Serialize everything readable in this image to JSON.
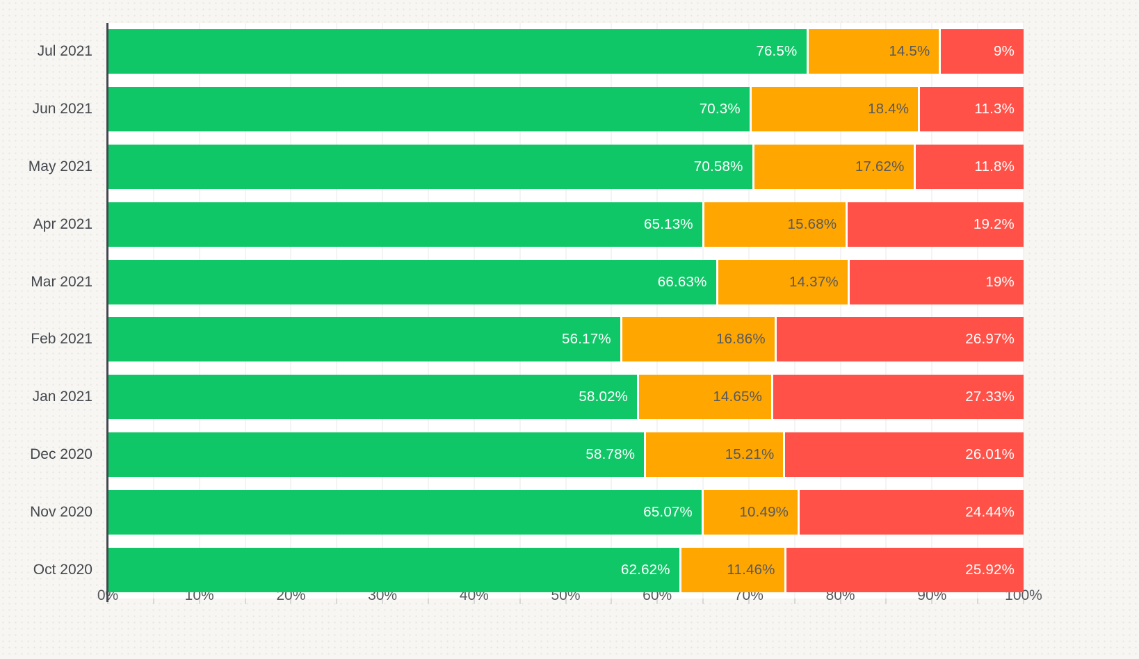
{
  "page": {
    "background": "#f7f6f3",
    "plot_background": "#ffffff",
    "gridline_color": "#e9e9e9",
    "axis_line_color": "#43474d",
    "tick_color": "#d8d8d6"
  },
  "chart_data": {
    "type": "bar",
    "stacked": true,
    "orientation": "horizontal",
    "title": "",
    "xlabel": "",
    "ylabel": "",
    "grid": true,
    "legend": "none",
    "categories": [
      "Jul 2021",
      "Jun 2021",
      "May 2021",
      "Apr 2021",
      "Mar 2021",
      "Feb 2021",
      "Jan 2021",
      "Dec 2020",
      "Nov 2020",
      "Oct 2020"
    ],
    "series": [
      {
        "name": "green",
        "color": "#10c767",
        "label_color": "#ffffff",
        "values": [
          76.5,
          70.3,
          70.58,
          65.13,
          66.63,
          56.17,
          58.02,
          58.78,
          65.07,
          62.62
        ],
        "labels": [
          "76.5%",
          "70.3%",
          "70.58%",
          "65.13%",
          "66.63%",
          "56.17%",
          "58.02%",
          "58.78%",
          "65.07%",
          "62.62%"
        ]
      },
      {
        "name": "orange",
        "color": "#ffa601",
        "label_color": "#55595e",
        "values": [
          14.5,
          18.4,
          17.62,
          15.68,
          14.37,
          16.86,
          14.65,
          15.21,
          10.49,
          11.46
        ],
        "labels": [
          "14.5%",
          "18.4%",
          "17.62%",
          "15.68%",
          "14.37%",
          "16.86%",
          "14.65%",
          "15.21%",
          "10.49%",
          "11.46%"
        ]
      },
      {
        "name": "red",
        "color": "#ff5147",
        "label_color": "#ffffff",
        "values": [
          9,
          11.3,
          11.8,
          19.2,
          19,
          26.97,
          27.33,
          26.01,
          24.44,
          25.92
        ],
        "labels": [
          "9%",
          "11.3%",
          "11.8%",
          "19.2%",
          "19%",
          "26.97%",
          "27.33%",
          "26.01%",
          "24.44%",
          "25.92%"
        ]
      }
    ],
    "x_axis": {
      "min": 0,
      "max": 100,
      "major_tick_step": 10,
      "minor_tick_step": 5,
      "tick_labels": [
        "0%",
        "10%",
        "20%",
        "30%",
        "40%",
        "50%",
        "60%",
        "70%",
        "80%",
        "90%",
        "100%"
      ]
    }
  }
}
